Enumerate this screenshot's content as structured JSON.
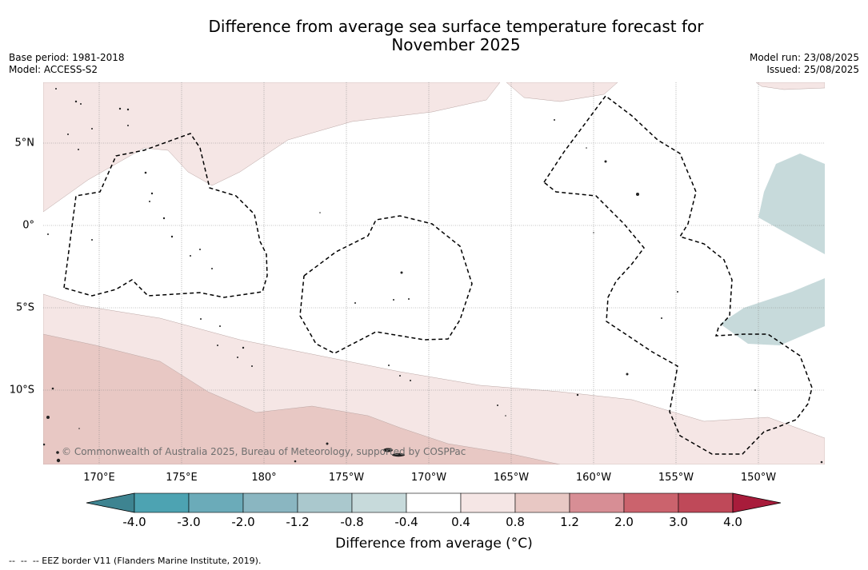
{
  "title": {
    "line1": "Difference from average sea surface temperature forecast for",
    "line2": "November 2025"
  },
  "meta_left": {
    "base_period": "Base period: 1981-2018",
    "model": "Model: ACCESS-S2"
  },
  "meta_right": {
    "model_run": "Model run: 23/08/2025",
    "issued": "Issued: 25/08/2025"
  },
  "map": {
    "longitude_labels": [
      "170°E",
      "175°E",
      "180°",
      "175°W",
      "170°W",
      "165°W",
      "160°W",
      "155°W",
      "150°W"
    ],
    "latitude_labels": [
      "5°N",
      "0°",
      "5°S",
      "10°S"
    ],
    "copyright": "© Commonwealth of Australia 2025, Bureau of Meteorology, supported by COSPPac",
    "colors": {
      "warm_light": "#f5e6e5",
      "warm_mid": "#e8c8c4",
      "cool_light": "#c7dadb",
      "land": "#333333"
    }
  },
  "colorbar": {
    "ticks": [
      "-4.0",
      "-3.0",
      "-2.0",
      "-1.2",
      "-0.8",
      "-0.4",
      "0.4",
      "0.8",
      "1.2",
      "2.0",
      "3.0",
      "4.0"
    ],
    "colors": [
      "#3e8491",
      "#4da3b2",
      "#6babb9",
      "#8ab6c1",
      "#aac8cd",
      "#c7dadb",
      "#ffffff",
      "#f5e6e5",
      "#e8c8c4",
      "#d78e95",
      "#cb636d",
      "#bf4959",
      "#a81c3b"
    ],
    "title": "Difference from average (°C)"
  },
  "footnote": "--  --  -- EEZ border V11 (Flanders Marine Institute, 2019)."
}
